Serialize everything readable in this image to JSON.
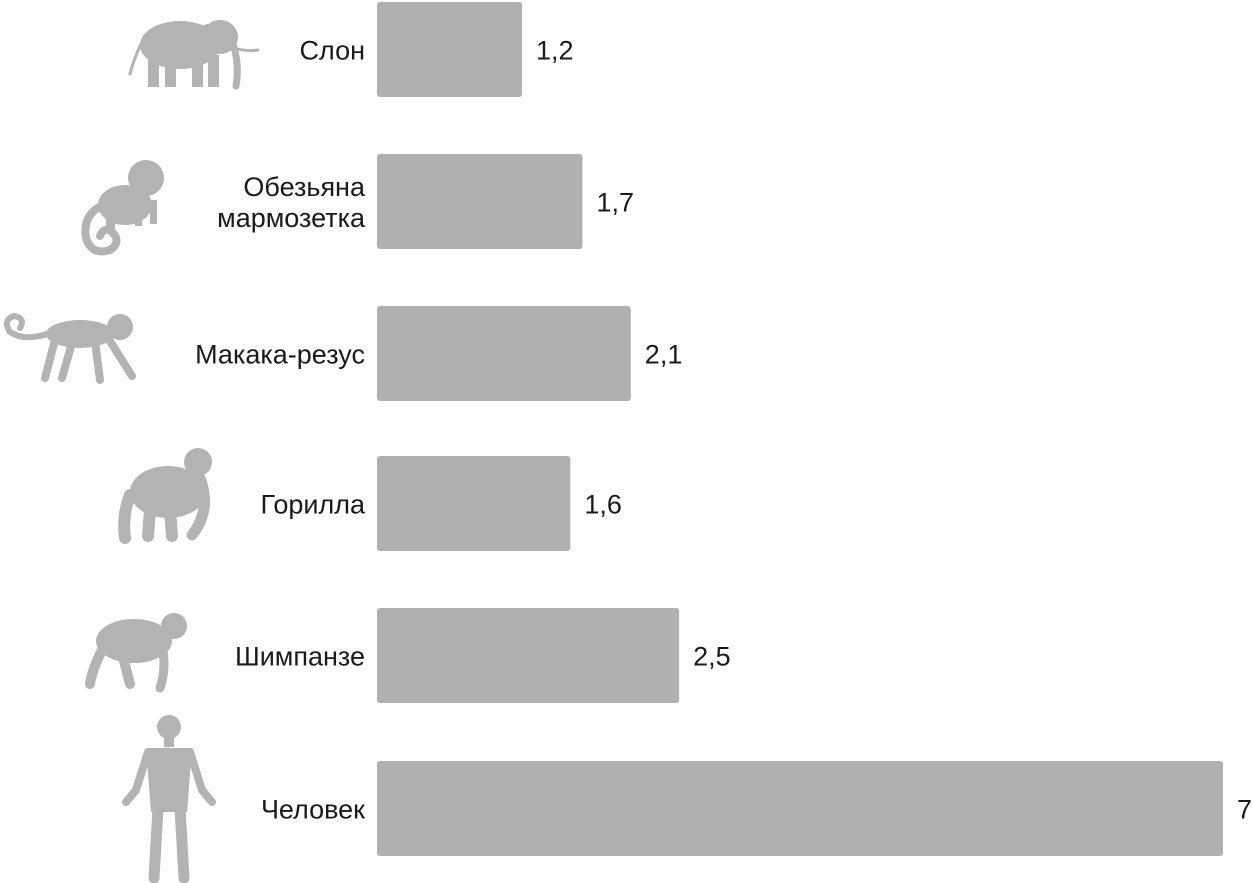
{
  "chart_data": {
    "type": "bar",
    "orientation": "horizontal",
    "categories": [
      "Слон",
      "Обезьяна мармозетка",
      "Макака-резус",
      "Горилла",
      "Шимпанзе",
      "Человек"
    ],
    "category_lines": [
      [
        "Слон"
      ],
      [
        "Обезьяна",
        "мармозетка"
      ],
      [
        "Макака-резус"
      ],
      [
        "Горилла"
      ],
      [
        "Шимпанзе"
      ],
      [
        "Человек"
      ]
    ],
    "values": [
      1.2,
      1.7,
      2.1,
      1.6,
      2.5,
      7
    ],
    "value_labels": [
      "1,2",
      "1,7",
      "2,1",
      "1,6",
      "2,5",
      "7"
    ],
    "icons": [
      "elephant-icon",
      "marmoset-icon",
      "macaque-icon",
      "gorilla-icon",
      "chimpanzee-icon",
      "human-icon"
    ],
    "xlim": [
      0,
      7
    ],
    "grid": false,
    "legend": "none",
    "bar_color": "#b0b0b0",
    "icon_color": "#b3b3b3",
    "text_color": "#1a1a1a"
  }
}
